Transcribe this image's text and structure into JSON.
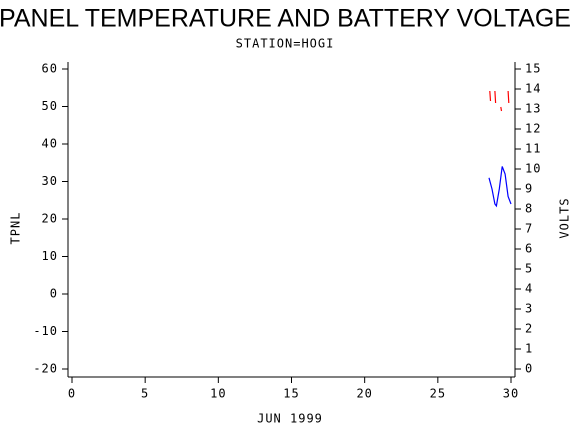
{
  "chart_data": {
    "type": "line",
    "title": "PANEL TEMPERATURE AND BATTERY VOLTAGE",
    "subtitle": "STATION=HOGI",
    "x_label": "JUN 1999",
    "y_label": "TPNL",
    "y2_label": "VOLTS",
    "xlim": [
      0,
      30
    ],
    "xticks": [
      0,
      5,
      10,
      15,
      20,
      25,
      30
    ],
    "ylim": [
      -20,
      60
    ],
    "yticks": [
      -20,
      -10,
      0,
      10,
      20,
      30,
      40,
      50,
      60
    ],
    "y2lim": [
      0,
      15
    ],
    "y2ticks": [
      0,
      1,
      2,
      3,
      4,
      5,
      6,
      7,
      8,
      9,
      10,
      11,
      12,
      13,
      14,
      15
    ],
    "series": [
      {
        "name": "TPNL",
        "color": "#0000ff",
        "x": [
          28.5,
          28.7,
          28.9,
          29.0,
          29.2,
          29.4,
          29.6,
          29.8,
          30.0
        ],
        "values": [
          31,
          28,
          24,
          23.5,
          28,
          34,
          32,
          26,
          24
        ]
      },
      {
        "name": "VOLTS",
        "color": "#ff0000",
        "axis": "y2",
        "x": [
          28.55,
          28.6,
          28.65,
          28.9,
          28.95,
          29.0,
          29.3,
          29.35,
          29.4,
          29.8,
          29.85,
          29.9,
          29.95
        ],
        "values": [
          13.9,
          13.4,
          null,
          13.9,
          13.3,
          null,
          13.1,
          12.9,
          null,
          13.9,
          13.3,
          null,
          12.9
        ]
      }
    ]
  }
}
